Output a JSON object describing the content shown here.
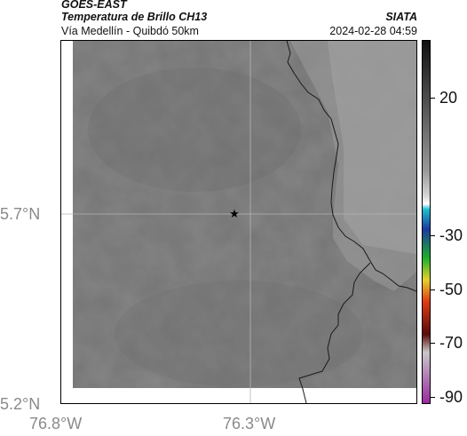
{
  "header": {
    "satellite": "GOES-EAST",
    "product": "Temperatura de Brillo CH13",
    "region": "Vía Medellín - Quibdó 50km",
    "source": "SIATA",
    "timestamp": "2024-02-28 04:59"
  },
  "map": {
    "latitude_labels": [
      "5.7°N",
      "5.2°N"
    ],
    "longitude_labels": [
      "76.8°W",
      "76.3°W"
    ],
    "marker_icon": "star-icon",
    "border_color": "#1a1a1a"
  },
  "colorbar": {
    "labels": [
      "20",
      "-30",
      "-50",
      "-70",
      "-90"
    ],
    "colors": [
      "#111111",
      "#5c5c5c",
      "#9a9a9a",
      "#d8d8d8",
      "#ffffff",
      "#1dbfd0",
      "#1c3aa0",
      "#1cb02c",
      "#e6d12a",
      "#e03a12",
      "#5a0a0a",
      "#c8c8c8",
      "#9a2aa0"
    ]
  }
}
